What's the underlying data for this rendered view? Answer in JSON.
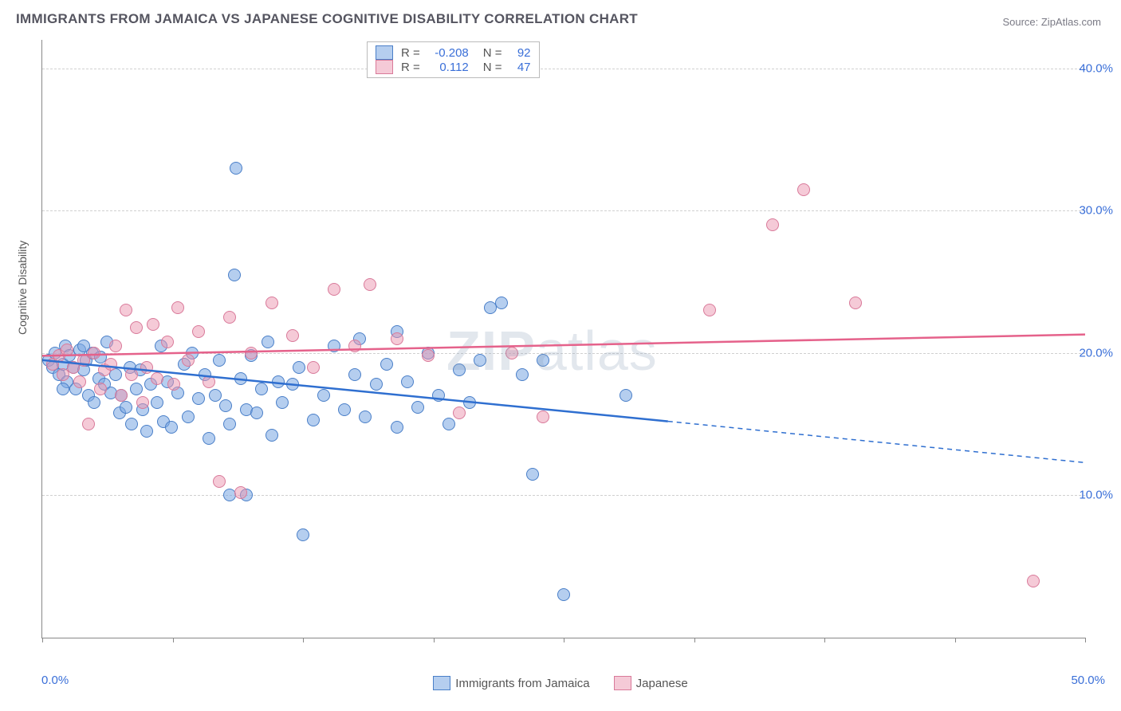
{
  "title": "IMMIGRANTS FROM JAMAICA VS JAPANESE COGNITIVE DISABILITY CORRELATION CHART",
  "source": "Source: ZipAtlas.com",
  "watermark_bold": "ZIP",
  "watermark_rest": "atlas",
  "chart": {
    "type": "scatter",
    "ylabel": "Cognitive Disability",
    "background_color": "#ffffff",
    "grid_color": "#d0d0d0",
    "axis_color": "#888888",
    "ytick_color": "#3a6fd8",
    "xlim": [
      0,
      50
    ],
    "ylim": [
      0,
      42
    ],
    "yticks": [
      10,
      20,
      30,
      40
    ],
    "ytick_labels": [
      "10.0%",
      "20.0%",
      "30.0%",
      "40.0%"
    ],
    "xticks": [
      0,
      6.25,
      12.5,
      18.75,
      25,
      31.25,
      37.5,
      43.75,
      50
    ],
    "x_first_label": "0.0%",
    "x_last_label": "50.0%",
    "marker_radius": 7,
    "series": [
      {
        "name": "Immigrants from Jamaica",
        "color_fill": "rgba(120,165,225,0.55)",
        "color_stroke": "#4a7fc8",
        "trend_color": "#2f6fd0",
        "r_value": "-0.208",
        "n_value": "92",
        "trend": {
          "x1": 0,
          "y1": 19.5,
          "x2": 30,
          "y2": 15.2,
          "x2_ext": 50,
          "y2_ext": 12.3
        },
        "points": [
          [
            0.3,
            19.5
          ],
          [
            0.5,
            19.0
          ],
          [
            0.6,
            20.0
          ],
          [
            0.8,
            18.5
          ],
          [
            1.0,
            19.2
          ],
          [
            1.1,
            20.5
          ],
          [
            1.2,
            18.0
          ],
          [
            1.3,
            19.8
          ],
          [
            1.5,
            19.0
          ],
          [
            1.6,
            17.5
          ],
          [
            1.8,
            20.2
          ],
          [
            2.0,
            18.8
          ],
          [
            2.1,
            19.5
          ],
          [
            2.2,
            17.0
          ],
          [
            2.4,
            20.0
          ],
          [
            2.5,
            16.5
          ],
          [
            2.7,
            18.2
          ],
          [
            2.8,
            19.7
          ],
          [
            3.0,
            17.8
          ],
          [
            3.1,
            20.8
          ],
          [
            3.3,
            17.2
          ],
          [
            3.5,
            18.5
          ],
          [
            3.7,
            15.8
          ],
          [
            3.8,
            17.0
          ],
          [
            4.0,
            16.2
          ],
          [
            4.2,
            19.0
          ],
          [
            4.3,
            15.0
          ],
          [
            4.5,
            17.5
          ],
          [
            4.7,
            18.8
          ],
          [
            4.8,
            16.0
          ],
          [
            5.0,
            14.5
          ],
          [
            5.2,
            17.8
          ],
          [
            5.5,
            16.5
          ],
          [
            5.7,
            20.5
          ],
          [
            5.8,
            15.2
          ],
          [
            6.0,
            18.0
          ],
          [
            6.2,
            14.8
          ],
          [
            6.5,
            17.2
          ],
          [
            6.8,
            19.2
          ],
          [
            7.0,
            15.5
          ],
          [
            7.2,
            20.0
          ],
          [
            7.5,
            16.8
          ],
          [
            7.8,
            18.5
          ],
          [
            8.0,
            14.0
          ],
          [
            8.3,
            17.0
          ],
          [
            8.5,
            19.5
          ],
          [
            8.8,
            16.3
          ],
          [
            9.0,
            15.0
          ],
          [
            9.2,
            25.5
          ],
          [
            9.3,
            33.0
          ],
          [
            9.5,
            18.2
          ],
          [
            9.8,
            16.0
          ],
          [
            9.8,
            10.0
          ],
          [
            10.0,
            19.8
          ],
          [
            10.3,
            15.8
          ],
          [
            10.5,
            17.5
          ],
          [
            10.8,
            20.8
          ],
          [
            11.0,
            14.2
          ],
          [
            11.3,
            18.0
          ],
          [
            11.5,
            16.5
          ],
          [
            12.5,
            7.2
          ],
          [
            12.0,
            17.8
          ],
          [
            12.3,
            19.0
          ],
          [
            13.0,
            15.3
          ],
          [
            13.5,
            17.0
          ],
          [
            14.0,
            20.5
          ],
          [
            14.5,
            16.0
          ],
          [
            15.0,
            18.5
          ],
          [
            15.2,
            21.0
          ],
          [
            15.5,
            15.5
          ],
          [
            16.0,
            17.8
          ],
          [
            16.5,
            19.2
          ],
          [
            17.0,
            14.8
          ],
          [
            17.0,
            21.5
          ],
          [
            17.5,
            18.0
          ],
          [
            18.0,
            16.2
          ],
          [
            18.5,
            20.0
          ],
          [
            19.0,
            17.0
          ],
          [
            19.5,
            15.0
          ],
          [
            20.0,
            18.8
          ],
          [
            20.5,
            16.5
          ],
          [
            21.0,
            19.5
          ],
          [
            21.5,
            23.2
          ],
          [
            22.0,
            23.5
          ],
          [
            23.0,
            18.5
          ],
          [
            23.5,
            11.5
          ],
          [
            24.0,
            19.5
          ],
          [
            25.0,
            3.0
          ],
          [
            28.0,
            17.0
          ],
          [
            9.0,
            10.0
          ],
          [
            2.0,
            20.5
          ],
          [
            1.0,
            17.5
          ]
        ]
      },
      {
        "name": "Japanese",
        "color_fill": "rgba(235,150,175,0.5)",
        "color_stroke": "#d97a9a",
        "trend_color": "#e5628b",
        "r_value": "0.112",
        "n_value": "47",
        "trend": {
          "x1": 0,
          "y1": 19.8,
          "x2": 50,
          "y2": 21.3
        },
        "points": [
          [
            0.5,
            19.2
          ],
          [
            0.8,
            19.8
          ],
          [
            1.0,
            18.5
          ],
          [
            1.2,
            20.2
          ],
          [
            1.5,
            19.0
          ],
          [
            1.8,
            18.0
          ],
          [
            2.0,
            19.5
          ],
          [
            2.2,
            15.0
          ],
          [
            2.5,
            20.0
          ],
          [
            2.8,
            17.5
          ],
          [
            3.0,
            18.8
          ],
          [
            3.3,
            19.2
          ],
          [
            3.5,
            20.5
          ],
          [
            3.8,
            17.0
          ],
          [
            4.0,
            23.0
          ],
          [
            4.3,
            18.5
          ],
          [
            4.5,
            21.8
          ],
          [
            4.8,
            16.5
          ],
          [
            5.0,
            19.0
          ],
          [
            5.3,
            22.0
          ],
          [
            5.5,
            18.2
          ],
          [
            6.0,
            20.8
          ],
          [
            6.3,
            17.8
          ],
          [
            6.5,
            23.2
          ],
          [
            7.0,
            19.5
          ],
          [
            7.5,
            21.5
          ],
          [
            8.0,
            18.0
          ],
          [
            8.5,
            11.0
          ],
          [
            9.0,
            22.5
          ],
          [
            9.5,
            10.2
          ],
          [
            10.0,
            20.0
          ],
          [
            11.0,
            23.5
          ],
          [
            12.0,
            21.2
          ],
          [
            13.0,
            19.0
          ],
          [
            14.0,
            24.5
          ],
          [
            15.0,
            20.5
          ],
          [
            15.7,
            24.8
          ],
          [
            17.0,
            21.0
          ],
          [
            18.5,
            19.8
          ],
          [
            20.0,
            15.8
          ],
          [
            22.5,
            20.0
          ],
          [
            24.0,
            15.5
          ],
          [
            32.0,
            23.0
          ],
          [
            36.5,
            31.5
          ],
          [
            39.0,
            23.5
          ],
          [
            35.0,
            29.0
          ],
          [
            47.5,
            4.0
          ]
        ]
      }
    ]
  },
  "legend_top": {
    "r_label": "R =",
    "n_label": "N ="
  },
  "legend_bottom": [
    {
      "swatch": "blue",
      "label": "Immigrants from Jamaica"
    },
    {
      "swatch": "pink",
      "label": "Japanese"
    }
  ]
}
